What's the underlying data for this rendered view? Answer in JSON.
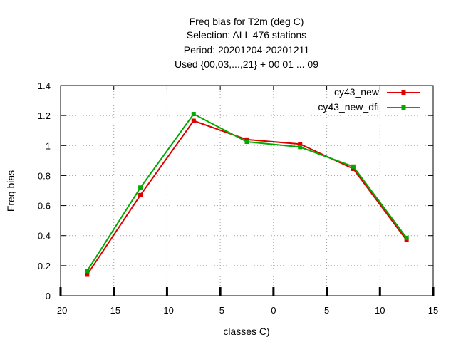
{
  "chart_data": {
    "type": "line",
    "title_lines": [
      "Freq bias  for T2m (deg C)",
      "Selection: ALL    476 stations",
      "Period: 20201204-20201211",
      "Used {00,03,...,21} + 00 01 ... 09"
    ],
    "xlabel": "classes C)",
    "ylabel": "Freq bias",
    "xlim": [
      -20,
      15
    ],
    "ylim": [
      0,
      1.4
    ],
    "xticks": [
      -20,
      -15,
      -10,
      -5,
      0,
      5,
      10,
      15
    ],
    "yticks": [
      0,
      0.2,
      0.4,
      0.6,
      0.8,
      1,
      1.2,
      1.4
    ],
    "grid": true,
    "legend_position": "top-right",
    "x": [
      -17.5,
      -12.5,
      -7.5,
      -2.5,
      2.5,
      7.5,
      12.5
    ],
    "series": [
      {
        "name": "cy43_new",
        "color": "#dd0000",
        "values": [
          0.14,
          0.67,
          1.165,
          1.04,
          1.01,
          0.845,
          0.37
        ]
      },
      {
        "name": "cy43_new_dfi",
        "color": "#00aa00",
        "values": [
          0.165,
          0.72,
          1.21,
          1.025,
          0.99,
          0.86,
          0.385
        ]
      }
    ]
  }
}
